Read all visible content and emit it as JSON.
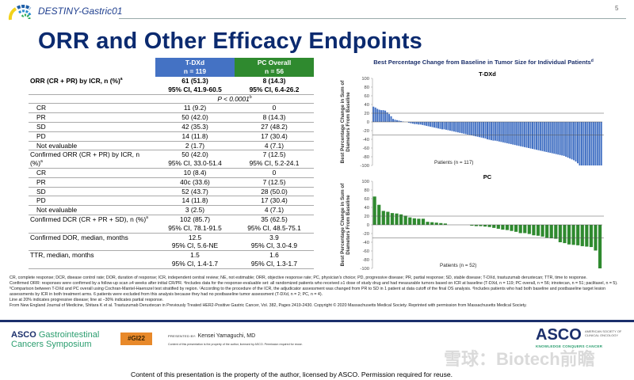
{
  "header": {
    "brand": "DESTINY-Gastric01",
    "page": "5",
    "title": "ORR and Other Efficacy Endpoints"
  },
  "table": {
    "col_tdxd": [
      "T-DXd",
      "n = 119"
    ],
    "col_pc": [
      "PC Overall",
      "n = 56"
    ],
    "rows": [
      {
        "label": "ORR (CR + PR) by ICR, n (%)",
        "sup": "a",
        "bold": true,
        "tdxd": [
          "61 (51.3)",
          "95% CI, 41.9-60.5"
        ],
        "pc": [
          "8 (14.3)",
          "95% CI, 6.4-26.2"
        ]
      },
      {
        "pvalue": "P < 0.0001",
        "sup": "b"
      },
      {
        "label": "CR",
        "indent": true,
        "tdxd": [
          "11 (9.2)"
        ],
        "pc": [
          "0"
        ]
      },
      {
        "label": "PR",
        "indent": true,
        "tdxd": [
          "50 (42.0)"
        ],
        "pc": [
          "8 (14.3)"
        ]
      },
      {
        "label": "SD",
        "indent": true,
        "tdxd": [
          "42 (35.3)"
        ],
        "pc": [
          "27 (48.2)"
        ]
      },
      {
        "label": "PD",
        "indent": true,
        "tdxd": [
          "14 (11.8)"
        ],
        "pc": [
          "17 (30.4)"
        ]
      },
      {
        "label": "Not evaluable",
        "indent": true,
        "tdxd": [
          "2 (1.7)"
        ],
        "pc": [
          "4 (7.1)"
        ]
      },
      {
        "label": "Confirmed ORR (CR + PR) by ICR, n (%)",
        "sup": "a",
        "tdxd": [
          "50 (42.0)",
          "95% CI, 33.0-51.4"
        ],
        "pc": [
          "7 (12.5)",
          "95% CI, 5.2-24.1"
        ]
      },
      {
        "label": "CR",
        "indent": true,
        "tdxd": [
          "10 (8.4)"
        ],
        "pc": [
          "0"
        ]
      },
      {
        "label": "PR",
        "indent": true,
        "tdxd": [
          "40c (33.6)"
        ],
        "pc": [
          "7 (12.5)"
        ]
      },
      {
        "label": "SD",
        "indent": true,
        "tdxd": [
          "52 (43.7)"
        ],
        "pc": [
          "28 (50.0)"
        ]
      },
      {
        "label": "PD",
        "indent": true,
        "tdxd": [
          "14 (11.8)"
        ],
        "pc": [
          "17 (30.4)"
        ]
      },
      {
        "label": "Not evaluable",
        "indent": true,
        "tdxd": [
          "3 (2.5)"
        ],
        "pc": [
          "4 (7.1)"
        ]
      },
      {
        "label": "Confirmed DCR (CR + PR + SD), n (%)",
        "sup": "a",
        "tdxd": [
          "102 (85.7)",
          "95% CI, 78.1-91.5"
        ],
        "pc": [
          "35 (62.5)",
          "95% CI, 48.5-75.1"
        ]
      },
      {
        "label": "Confirmed DOR, median, months",
        "tdxd": [
          "12.5",
          "95% CI, 5.6-NE"
        ],
        "pc": [
          "3.9",
          "95% CI, 3.0-4.9"
        ]
      },
      {
        "label": "TTR, median, months",
        "tdxd": [
          "1.5",
          "95% CI, 1.4-1.7"
        ],
        "pc": [
          "1.6",
          "95% CI, 1.3-1.7"
        ]
      }
    ]
  },
  "chart_data": [
    {
      "type": "bar",
      "title": "Best Percentage Change from Baseline in Tumor Size for Individual Patients",
      "title_sup": "d",
      "panel": "T-DXd",
      "ylabel": "Best Percentage Change in Sum of Diameters From Baseline",
      "xlabel": "Patients (n = 117)",
      "ylim": [
        -100,
        100
      ],
      "yticks": [
        100,
        80,
        60,
        40,
        20,
        0,
        -20,
        -40,
        -60,
        -80,
        -100
      ],
      "reference_lines": [
        20,
        -30
      ],
      "color": "#4472c4",
      "values": [
        35,
        33,
        30,
        28,
        27,
        27,
        26,
        22,
        18,
        13,
        7,
        5,
        4,
        3,
        2,
        1,
        0,
        0,
        -2,
        -3,
        -4,
        -5,
        -5,
        -6,
        -6,
        -7,
        -8,
        -9,
        -10,
        -11,
        -12,
        -13,
        -14,
        -15,
        -16,
        -17,
        -17,
        -18,
        -19,
        -20,
        -21,
        -22,
        -23,
        -24,
        -25,
        -26,
        -27,
        -28,
        -29,
        -30,
        -31,
        -32,
        -33,
        -34,
        -35,
        -36,
        -37,
        -38,
        -40,
        -41,
        -42,
        -43,
        -43,
        -44,
        -45,
        -46,
        -47,
        -48,
        -49,
        -50,
        -51,
        -52,
        -53,
        -54,
        -55,
        -56,
        -57,
        -58,
        -59,
        -60,
        -61,
        -62,
        -63,
        -64,
        -65,
        -66,
        -67,
        -68,
        -69,
        -70,
        -71,
        -72,
        -73,
        -74,
        -75,
        -76,
        -77,
        -78,
        -80,
        -82,
        -84,
        -86,
        -88,
        -91,
        -95,
        -100,
        -100,
        -100,
        -100,
        -100,
        -100,
        -100,
        -100,
        -100,
        -100,
        -100,
        -100
      ]
    },
    {
      "type": "bar",
      "panel": "PC",
      "ylabel": "Best Percentage Change in Sum of Diameters From Baseline",
      "xlabel": "Patients (n = 52)",
      "ylim": [
        -100,
        100
      ],
      "yticks": [
        100,
        80,
        60,
        40,
        20,
        0,
        -20,
        -40,
        -60,
        -80,
        -100
      ],
      "reference_lines": [
        20,
        -30
      ],
      "color": "#2f8a2f",
      "values": [
        65,
        46,
        32,
        30,
        27,
        26,
        24,
        21,
        17,
        15,
        14,
        14,
        7,
        6,
        5,
        4,
        3,
        0,
        0,
        0,
        0,
        0,
        -2,
        -3,
        -3,
        -4,
        -5,
        -7,
        -9,
        -11,
        -12,
        -14,
        -16,
        -19,
        -19,
        -21,
        -24,
        -25,
        -27,
        -30,
        -31,
        -32,
        -40,
        -42,
        -45,
        -46,
        -47,
        -49,
        -50,
        -51,
        -59,
        -100
      ]
    }
  ],
  "notes": [
    "CR, complete response; DCR, disease control rate; DOR, duration of response; ICR, independent central review; NE, not estimable; ORR, objective response rate; PC, physician's choice; PD, progressive disease; PR, partial response; SD, stable disease; T-DXd, trastuzumab deruxtecan; TTR, time to response.",
    "Confirmed ORR: responses were confirmed by a follow-up scan ≥4 weeks after initial CR/PR. ᵃIncludes data for the response-evaluable set: all randomized patients who received ≥1 dose of study drug and had measurable tumors based on ICR at baseline (T-DXd, n = 119; PC overall, n = 56; irinotecan, n = 51; paclitaxel, n = 5). ᵇComparison between T-DXd and PC overall using Cochran-Mantel-Haenszel test stratified by region. ᶜAccording to the procedure of the ICR, the adjudicator assessment was changed from PR to SD in 1 patient at data cutoff of the final OS analysis. ᵈIncludes patients who had both baseline and postbaseline target lesion assessments by ICR in both treatment arms. 6 patients were excluded from this analysis because they had no postbaseline tumor assessment (T-DXd, n = 2; PC, n = 4).",
    "Line at 20% indicates progressive disease; line at −30% indicates partial response.",
    "From New England Journal of Medicine, Shitara K et al. Trastuzumab Deruxtecan in Previously Treated HER2-Positive Gastric Cancer, Vol. 382, Pages 2419-2430. Copyright © 2020 Massachusetts Medical Society. Reprinted with permission from Massachusetts Medical Society."
  ],
  "footer": {
    "asco_left": "ASCO",
    "symposium_1": "Gastrointestinal",
    "symposium_2": "Cancers Symposium",
    "hashtag": "#GI22",
    "presented_by": "PRESENTED BY:",
    "presenter": "Kensei Yamaguchi, MD",
    "small_notice": "Content of this presentation is the property of the author, licensed by ASCO. Permission required for reuse.",
    "asco_right": "ASCO",
    "asco_sub": "AMERICAN SOCIETY OF CLINICAL ONCOLOGY",
    "asco_tagline": "KNOWLEDGE CONQUERS CANCER",
    "watermark": "雪球：Biotech前瞻",
    "bottom_notice": "Content of this presentation is the property of the author, licensed by ASCO. Permission required for reuse."
  }
}
